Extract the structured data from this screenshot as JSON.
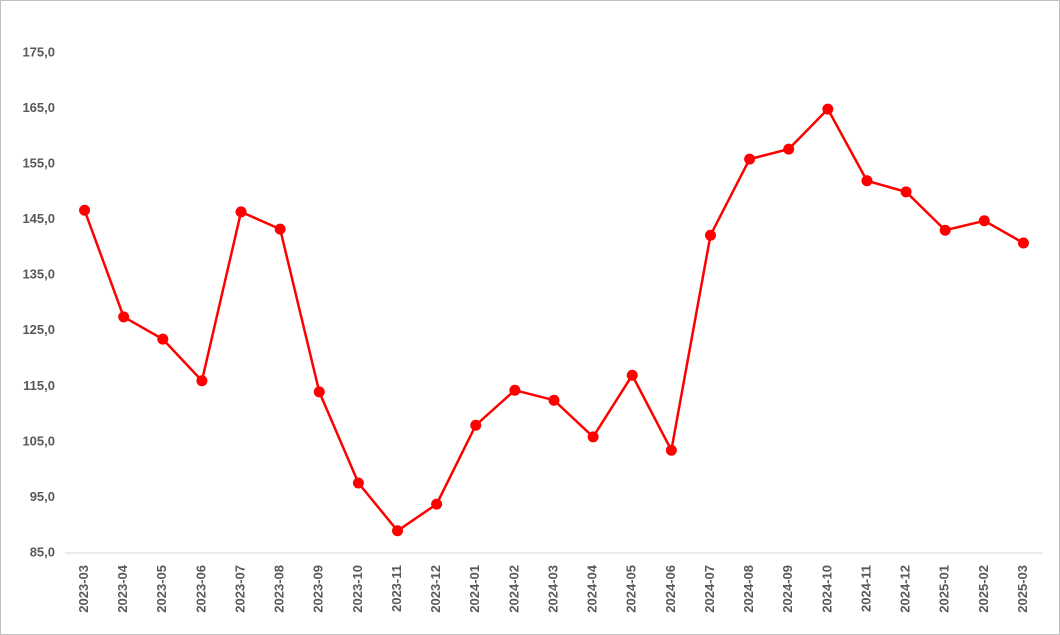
{
  "chart_data": {
    "type": "line",
    "categories": [
      "2023-03",
      "2023-04",
      "2023-05",
      "2023-06",
      "2023-07",
      "2023-08",
      "2023-09",
      "2023-10",
      "2023-11",
      "2023-12",
      "2024-01",
      "2024-02",
      "2024-03",
      "2024-04",
      "2024-05",
      "2024-06",
      "2024-07",
      "2024-08",
      "2024-09",
      "2024-10",
      "2024-11",
      "2024-12",
      "2025-01",
      "2025-02",
      "2025-03"
    ],
    "series": [
      {
        "color": "#ff0000",
        "values": [
          146.7,
          127.5,
          123.5,
          116.0,
          146.4,
          143.3,
          114.0,
          97.6,
          89.0,
          93.8,
          108.0,
          114.3,
          112.5,
          105.9,
          117.0,
          103.5,
          142.2,
          155.9,
          157.7,
          164.9,
          152.0,
          150.0,
          143.1,
          144.8,
          140.8
        ]
      }
    ],
    "ylim": [
      85,
      175
    ],
    "yticks": [
      {
        "value": 85,
        "label": "85,0"
      },
      {
        "value": 95,
        "label": "95,0"
      },
      {
        "value": 105,
        "label": "105,0"
      },
      {
        "value": 115,
        "label": "115,0"
      },
      {
        "value": 125,
        "label": "125,0"
      },
      {
        "value": 135,
        "label": "135,0"
      },
      {
        "value": 145,
        "label": "145,0"
      },
      {
        "value": 155,
        "label": "155,0"
      },
      {
        "value": 165,
        "label": "165,0"
      },
      {
        "value": 175,
        "label": "175,0"
      }
    ],
    "grid": false
  }
}
